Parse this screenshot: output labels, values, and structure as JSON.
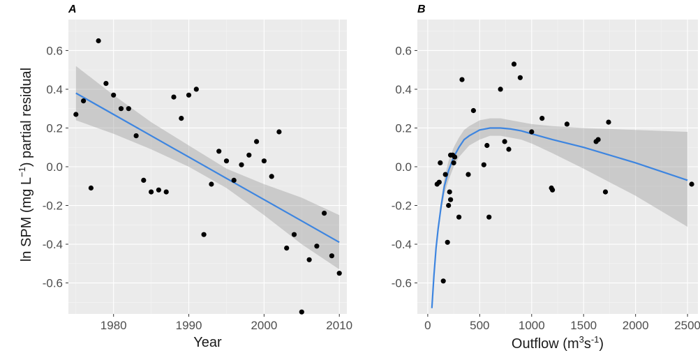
{
  "colors": {
    "fit_line": "#3d85e0",
    "points": "#000000",
    "panel_background": "#ebebeb"
  },
  "ylabel": {
    "pre": "ln SPM (mg L",
    "sup": "−1",
    "post": ") partial residual"
  },
  "chart_data": [
    {
      "type": "scatter",
      "panel_label": "A",
      "xlabel": "Year",
      "xlim": [
        1974,
        2011
      ],
      "ylim": [
        -0.76,
        0.76
      ],
      "x_ticks": [
        1980,
        1990,
        2000,
        2010
      ],
      "y_ticks": [
        -0.6,
        -0.4,
        -0.2,
        0.0,
        0.2,
        0.4,
        0.6
      ],
      "y_tick_labels": [
        "-0.6",
        "-0.4",
        "-0.2",
        "0.0",
        "0.2",
        "0.4",
        "0.6"
      ],
      "grid": true,
      "points": [
        [
          1975,
          0.27
        ],
        [
          1976,
          0.34
        ],
        [
          1977,
          -0.11
        ],
        [
          1978,
          0.65
        ],
        [
          1979,
          0.43
        ],
        [
          1980,
          0.37
        ],
        [
          1981,
          0.3
        ],
        [
          1982,
          0.3
        ],
        [
          1983,
          0.16
        ],
        [
          1984,
          -0.07
        ],
        [
          1985,
          -0.13
        ],
        [
          1986,
          -0.12
        ],
        [
          1987,
          -0.13
        ],
        [
          1988,
          0.36
        ],
        [
          1989,
          0.25
        ],
        [
          1990,
          0.37
        ],
        [
          1991,
          0.4
        ],
        [
          1992,
          -0.35
        ],
        [
          1993,
          -0.09
        ],
        [
          1994,
          0.08
        ],
        [
          1995,
          0.03
        ],
        [
          1996,
          -0.07
        ],
        [
          1997,
          0.01
        ],
        [
          1998,
          0.06
        ],
        [
          1999,
          0.13
        ],
        [
          2000,
          0.03
        ],
        [
          2001,
          -0.05
        ],
        [
          2002,
          0.18
        ],
        [
          2003,
          -0.42
        ],
        [
          2004,
          -0.35
        ],
        [
          2005,
          -0.75
        ],
        [
          2006,
          -0.48
        ],
        [
          2007,
          -0.41
        ],
        [
          2008,
          -0.24
        ],
        [
          2009,
          -0.46
        ],
        [
          2010,
          -0.55
        ]
      ],
      "fit": {
        "x": [
          1975,
          1980,
          1985,
          1990,
          1995,
          2000,
          2005,
          2010
        ],
        "y": [
          0.38,
          0.27,
          0.16,
          0.05,
          -0.06,
          -0.17,
          -0.28,
          -0.39
        ],
        "lower": [
          0.24,
          0.17,
          0.09,
          0.0,
          -0.11,
          -0.25,
          -0.4,
          -0.53
        ],
        "upper": [
          0.52,
          0.37,
          0.23,
          0.11,
          -0.01,
          -0.09,
          -0.16,
          -0.25
        ]
      }
    },
    {
      "type": "scatter",
      "panel_label": "B",
      "xlabel": {
        "pre": "Outflow (m",
        "sup1": "3",
        "mid": "s",
        "sup2": "-1",
        "post": ")"
      },
      "xlim": [
        -100,
        2600
      ],
      "ylim": [
        -0.76,
        0.76
      ],
      "x_ticks": [
        0,
        500,
        1000,
        1500,
        2000,
        2500
      ],
      "y_ticks": [
        -0.6,
        -0.4,
        -0.2,
        0.0,
        0.2,
        0.4,
        0.6
      ],
      "y_tick_labels": [
        "-0.6",
        "-0.4",
        "-0.2",
        "0.0",
        "0.2",
        "0.4",
        "0.6"
      ],
      "grid": true,
      "points": [
        [
          90,
          -0.09
        ],
        [
          110,
          -0.08
        ],
        [
          120,
          0.02
        ],
        [
          150,
          -0.59
        ],
        [
          170,
          -0.04
        ],
        [
          190,
          -0.39
        ],
        [
          200,
          -0.2
        ],
        [
          210,
          -0.13
        ],
        [
          220,
          -0.17
        ],
        [
          220,
          0.06
        ],
        [
          240,
          0.06
        ],
        [
          250,
          0.02
        ],
        [
          260,
          0.05
        ],
        [
          300,
          -0.26
        ],
        [
          330,
          0.45
        ],
        [
          390,
          -0.04
        ],
        [
          440,
          0.29
        ],
        [
          540,
          0.01
        ],
        [
          570,
          0.11
        ],
        [
          590,
          -0.26
        ],
        [
          700,
          0.4
        ],
        [
          740,
          0.13
        ],
        [
          780,
          0.09
        ],
        [
          830,
          0.53
        ],
        [
          890,
          0.46
        ],
        [
          1000,
          0.18
        ],
        [
          1100,
          0.25
        ],
        [
          1190,
          -0.11
        ],
        [
          1200,
          -0.12
        ],
        [
          1340,
          0.22
        ],
        [
          1620,
          0.13
        ],
        [
          1640,
          0.14
        ],
        [
          1710,
          -0.13
        ],
        [
          1740,
          0.23
        ],
        [
          2540,
          -0.09
        ]
      ],
      "fit": {
        "x": [
          40,
          60,
          80,
          100,
          130,
          160,
          200,
          250,
          300,
          350,
          400,
          500,
          600,
          700,
          800,
          900,
          1000,
          1200,
          1500,
          2000,
          2500
        ],
        "y": [
          -0.73,
          -0.56,
          -0.42,
          -0.32,
          -0.2,
          -0.1,
          -0.02,
          0.05,
          0.1,
          0.14,
          0.16,
          0.19,
          0.2,
          0.2,
          0.195,
          0.185,
          0.17,
          0.14,
          0.1,
          0.02,
          -0.07
        ],
        "lower": [
          -0.73,
          -0.56,
          -0.43,
          -0.34,
          -0.23,
          -0.14,
          -0.07,
          0.0,
          0.05,
          0.08,
          0.11,
          0.14,
          0.16,
          0.16,
          0.15,
          0.14,
          0.12,
          0.07,
          -0.01,
          -0.15,
          -0.31
        ],
        "upper": [
          -0.73,
          -0.56,
          -0.41,
          -0.3,
          -0.17,
          -0.06,
          0.03,
          0.1,
          0.15,
          0.19,
          0.21,
          0.24,
          0.25,
          0.25,
          0.24,
          0.23,
          0.22,
          0.21,
          0.2,
          0.19,
          0.18
        ]
      }
    }
  ]
}
